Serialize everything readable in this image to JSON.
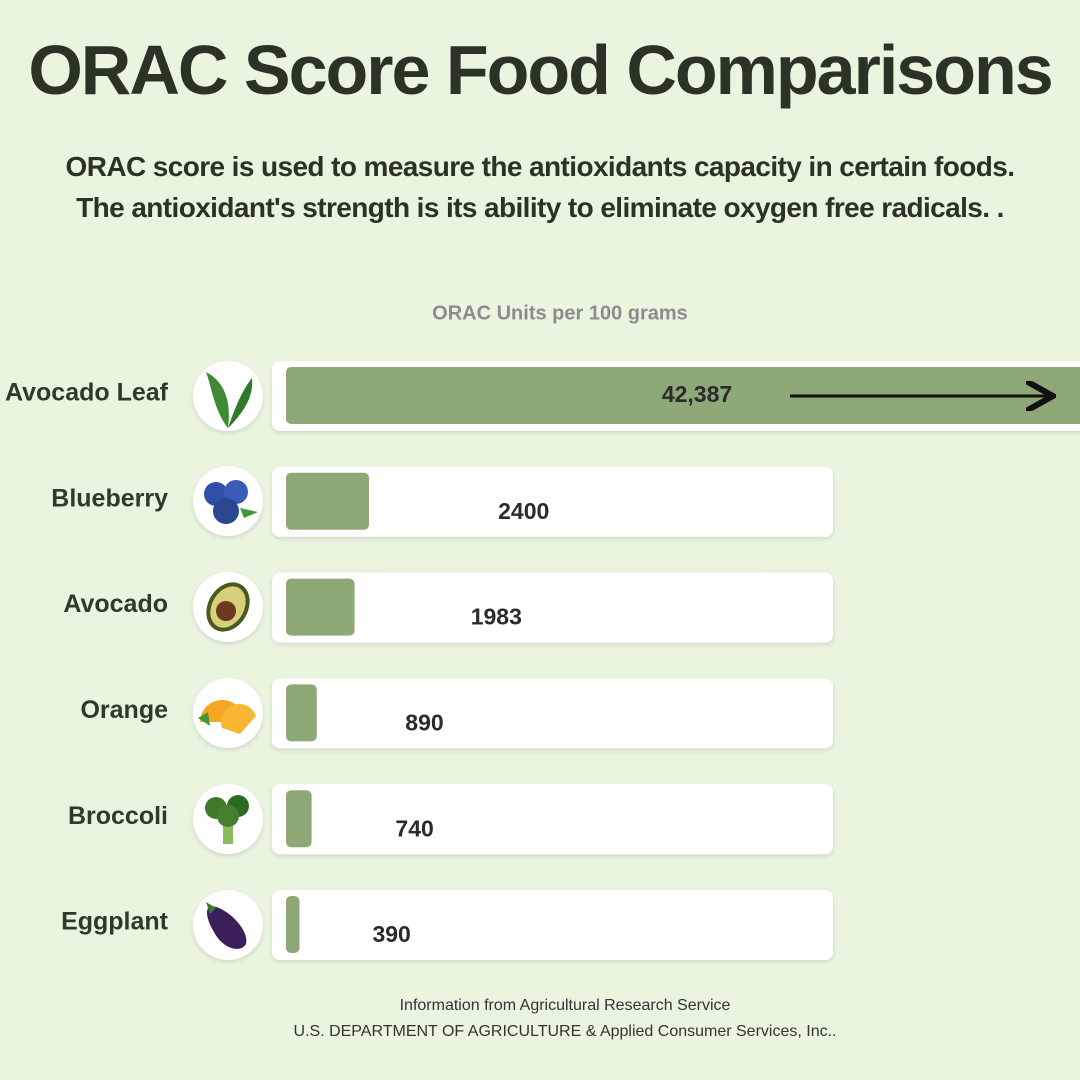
{
  "chart_data": {
    "type": "bar",
    "orientation": "horizontal",
    "title": "ORAC Score Food Comparisons",
    "subtitle": "ORAC score is used to measure the antioxidants capacity in certain foods. The antioxidant's strength is its ability to eliminate oxygen free radicals. .",
    "value_axis_label": "ORAC Units per 100 grams",
    "categories": [
      "Avocado Leaf",
      "Blueberry",
      "Avocado",
      "Orange",
      "Broccoli",
      "Eggplant"
    ],
    "values": [
      42387,
      2400,
      1983,
      890,
      740,
      390
    ],
    "value_labels": [
      "42,387",
      "2400",
      "1983",
      "890",
      "740",
      "390"
    ],
    "color": "#8fa878",
    "source": [
      "Information from Agricultural Research Service",
      "U.S. DEPARTMENT OF AGRICULTURE & Applied Consumer Services, Inc.."
    ]
  }
}
